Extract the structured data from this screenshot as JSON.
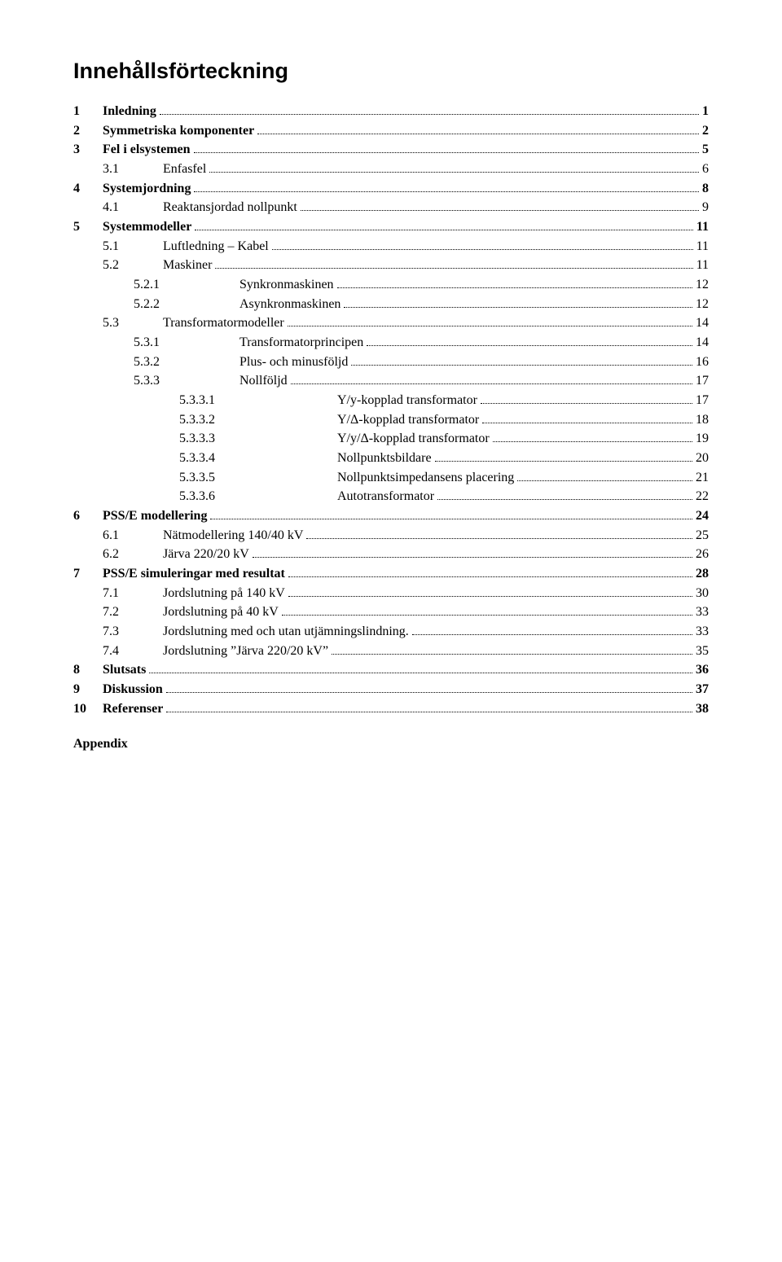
{
  "title": "Innehållsförteckning",
  "appendix_label": "Appendix",
  "entries": [
    {
      "level": 0,
      "bold": true,
      "num": "1",
      "label": "Inledning",
      "page": "1"
    },
    {
      "level": 0,
      "bold": true,
      "num": "2",
      "label": "Symmetriska komponenter",
      "page": "2"
    },
    {
      "level": 0,
      "bold": true,
      "num": "3",
      "label": "Fel i elsystemen",
      "page": "5"
    },
    {
      "level": 1,
      "bold": false,
      "num": "3.1",
      "label": "Enfasfel",
      "page": "6"
    },
    {
      "level": 0,
      "bold": true,
      "num": "4",
      "label": "Systemjordning",
      "page": "8"
    },
    {
      "level": 1,
      "bold": false,
      "num": "4.1",
      "label": "Reaktansjordad nollpunkt",
      "page": "9"
    },
    {
      "level": 0,
      "bold": true,
      "num": "5",
      "label": "Systemmodeller",
      "page": "11"
    },
    {
      "level": 1,
      "bold": false,
      "num": "5.1",
      "label": "Luftledning – Kabel",
      "page": "11"
    },
    {
      "level": 1,
      "bold": false,
      "num": "5.2",
      "label": "Maskiner",
      "page": "11"
    },
    {
      "level": 2,
      "bold": false,
      "num": "5.2.1",
      "label": "Synkronmaskinen",
      "page": "12"
    },
    {
      "level": 2,
      "bold": false,
      "num": "5.2.2",
      "label": "Asynkronmaskinen",
      "page": "12"
    },
    {
      "level": 1,
      "bold": false,
      "num": "5.3",
      "label": "Transformatormodeller",
      "page": "14"
    },
    {
      "level": 2,
      "bold": false,
      "num": "5.3.1",
      "label": "Transformatorprincipen",
      "page": "14"
    },
    {
      "level": 2,
      "bold": false,
      "num": "5.3.2",
      "label": "Plus- och minusföljd",
      "page": "16"
    },
    {
      "level": 2,
      "bold": false,
      "num": "5.3.3",
      "label": "Nollföljd",
      "page": "17"
    },
    {
      "level": 3,
      "bold": false,
      "num": "5.3.3.1",
      "label": "Y/y-kopplad transformator",
      "page": "17"
    },
    {
      "level": 3,
      "bold": false,
      "num": "5.3.3.2",
      "label": "Y/Δ-kopplad transformator",
      "page": "18"
    },
    {
      "level": 3,
      "bold": false,
      "num": "5.3.3.3",
      "label": "Y/y/Δ-kopplad transformator",
      "page": "19"
    },
    {
      "level": 3,
      "bold": false,
      "num": "5.3.3.4",
      "label": "Nollpunktsbildare",
      "page": "20"
    },
    {
      "level": 3,
      "bold": false,
      "num": "5.3.3.5",
      "label": "Nollpunktsimpedansens placering",
      "page": "21"
    },
    {
      "level": 3,
      "bold": false,
      "num": "5.3.3.6",
      "label": "Autotransformator",
      "page": "22"
    },
    {
      "level": 0,
      "bold": true,
      "num": "6",
      "label": "PSS/E modellering",
      "page": "24"
    },
    {
      "level": 1,
      "bold": false,
      "num": "6.1",
      "label": "Nätmodellering 140/40 kV",
      "page": "25"
    },
    {
      "level": 1,
      "bold": false,
      "num": "6.2",
      "label": "Järva 220/20 kV",
      "page": "26"
    },
    {
      "level": 0,
      "bold": true,
      "num": "7",
      "label": "PSS/E simuleringar med resultat",
      "page": "28"
    },
    {
      "level": 1,
      "bold": false,
      "num": "7.1",
      "label": "Jordslutning på 140 kV",
      "page": "30"
    },
    {
      "level": 1,
      "bold": false,
      "num": "7.2",
      "label": "Jordslutning på 40 kV",
      "page": "33"
    },
    {
      "level": 1,
      "bold": false,
      "num": "7.3",
      "label": "Jordslutning med och utan utjämningslindning.",
      "page": "33"
    },
    {
      "level": 1,
      "bold": false,
      "num": "7.4",
      "label": "Jordslutning ”Järva 220/20 kV”",
      "page": "35"
    },
    {
      "level": 0,
      "bold": true,
      "num": "8",
      "label": "Slutsats",
      "page": "36"
    },
    {
      "level": 0,
      "bold": true,
      "num": "9",
      "label": "Diskussion",
      "page": "37"
    },
    {
      "level": 0,
      "bold": true,
      "num": "10",
      "label": "Referenser",
      "page": "38"
    }
  ]
}
